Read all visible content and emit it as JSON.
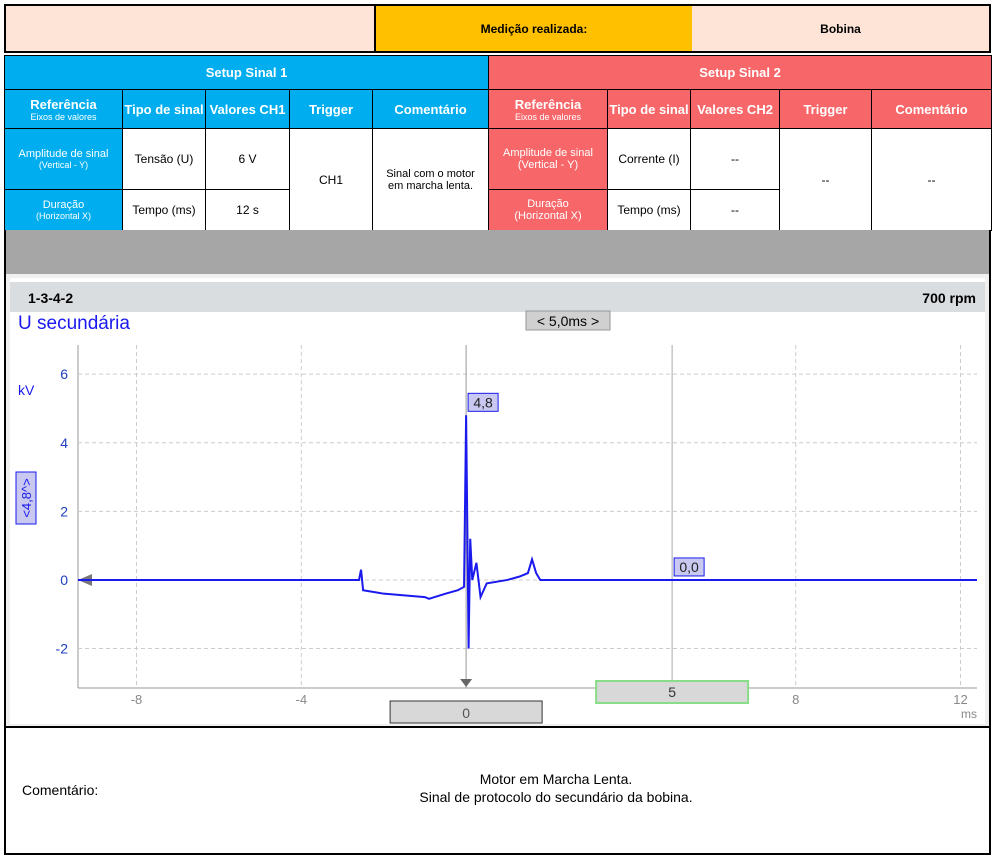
{
  "header": {
    "label": "Medição realizada:",
    "value": "Bobina"
  },
  "setup1": {
    "title": "Setup Sinal 1",
    "columns": [
      {
        "main": "Referência",
        "sub": "Eixos de valores"
      },
      "Tipo de sinal",
      "Valores CH1",
      "Trigger",
      "Comentário"
    ],
    "rows": [
      {
        "ref": "Amplitude de sinal",
        "ref_sub": "(Vertical - Y)",
        "type": "Tensão (U)",
        "value": "6 V"
      },
      {
        "ref": "Duração",
        "ref_sub": "(Horizontal X)",
        "type": "Tempo (ms)",
        "value": "12 s"
      }
    ],
    "trigger": "CH1",
    "comment": "Sinal com o motor em marcha lenta."
  },
  "setup2": {
    "title": "Setup Sinal 2",
    "columns": [
      {
        "main": "Referência",
        "sub": "Eixos de valores"
      },
      "Tipo de sinal",
      "Valores CH2",
      "Trigger",
      "Comentário"
    ],
    "rows": [
      {
        "ref": "Amplitude de sinal",
        "ref_sub": "(Vertical - Y)",
        "type": "Corrente (I)",
        "value": "--"
      },
      {
        "ref": "Duração",
        "ref_sub": "(Horizontal X)",
        "type": "Tempo (ms)",
        "value": "--"
      }
    ],
    "trigger": "--",
    "comment": "--"
  },
  "scope": {
    "firing_order": "1-3-4-2",
    "rpm": "700 rpm",
    "time_scale": "< 5,0ms >",
    "y_scale": "<4,8^>"
  },
  "chart_data": {
    "type": "line",
    "title": "U secundária",
    "y_label": "kV",
    "x_label": "ms",
    "xlim": [
      -9.42,
      12.4
    ],
    "ylim": [
      -3.15,
      6.85
    ],
    "xticks": [
      -8,
      -4,
      0,
      8,
      12
    ],
    "yticks": [
      -2,
      0,
      2,
      4,
      6
    ],
    "grid": true,
    "series": [
      {
        "name": "U secundária",
        "color": "#1a1aee",
        "x": [
          -9.42,
          -2.6,
          -2.55,
          -2.5,
          -2,
          -1,
          -0.9,
          -0.5,
          -0.2,
          -0.05,
          0,
          0.03,
          0.06,
          0.1,
          0.15,
          0.25,
          0.35,
          0.5,
          1,
          1.3,
          1.5,
          1.6,
          1.7,
          1.8,
          3,
          12.4
        ],
        "values": [
          0,
          0,
          0.3,
          -0.3,
          -0.4,
          -0.5,
          -0.55,
          -0.4,
          -0.3,
          -0.2,
          4.8,
          1.5,
          -2,
          1.2,
          0,
          0.5,
          -0.5,
          -0.1,
          0,
          0.1,
          0.2,
          0.6,
          0.2,
          0,
          0,
          0
        ]
      }
    ],
    "markers": [
      {
        "x": 0,
        "y": 4.8,
        "label": "4,8"
      },
      {
        "x": 5,
        "y": 0,
        "label": "0,0"
      }
    ],
    "cursor": {
      "x": 5,
      "label": "5"
    }
  },
  "footer": {
    "label": "Comentário:",
    "lines": [
      "Motor em Marcha Lenta.",
      "Sinal de protocolo do secundário da bobina."
    ]
  }
}
